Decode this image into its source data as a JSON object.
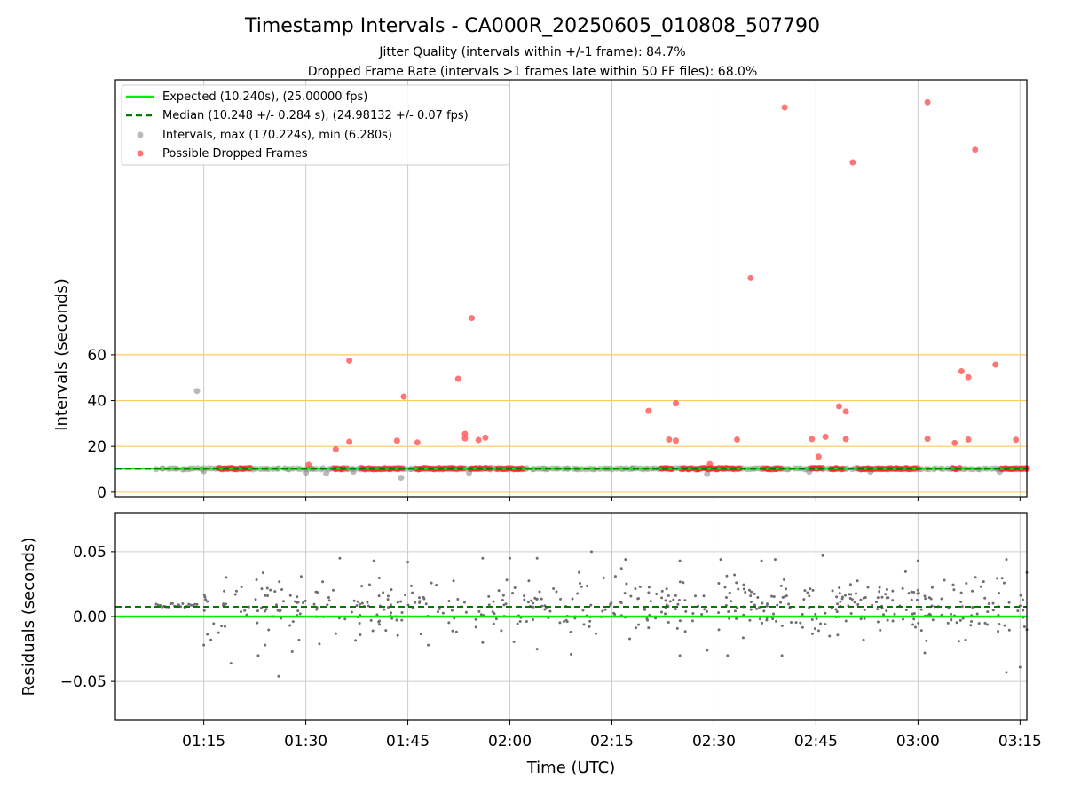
{
  "colors": {
    "expected": "#00ee00",
    "median": "#007a00",
    "interval": "#8c8c8c",
    "dropped": "#ff1a1a",
    "hline": "#ffc966",
    "grid": "#cccccc",
    "residual": "#6e6e6e"
  },
  "figure": {
    "title": "Timestamp Intervals - CA000R_20250605_010808_507790",
    "subtitle1": "Jitter Quality (intervals within +/-1 frame): 84.7%",
    "subtitle2": "Dropped Frame Rate (intervals >1 frames late within 50 FF files): 68.0%"
  },
  "chart_data": [
    {
      "type": "scatter",
      "ylabel": "Intervals (seconds)",
      "xlim": [
        "01:02",
        "03:16"
      ],
      "ylim": [
        -2,
        180
      ],
      "yticks": [
        0,
        20,
        40,
        60
      ],
      "ytick_labels": [
        "0",
        "20",
        "40",
        "60"
      ],
      "hlines": [
        0,
        20,
        40,
        60
      ],
      "vgrid": [
        "01:15",
        "01:30",
        "01:45",
        "02:00",
        "02:15",
        "02:30",
        "02:45",
        "03:00",
        "03:15"
      ],
      "legend_position": "upper-left",
      "legend": [
        "Expected (10.240s), (25.00000 fps)",
        "Median (10.248 +/- 0.284 s), (24.98132 +/- 0.07 fps)",
        "Intervals, max (170.224s), min (6.280s)",
        "Possible Dropped Frames"
      ],
      "expected": 10.24,
      "median": 10.248,
      "series": [
        {
          "role": "intervals",
          "points": [
            [
              "01:14",
              44.2
            ],
            [
              "01:44",
              6.3
            ],
            [
              "01:54",
              8.5
            ],
            [
              "01:33",
              8.3
            ],
            [
              "01:30",
              8.5
            ],
            [
              "02:29",
              8.0
            ],
            [
              "01:37",
              9.0
            ],
            [
              "01:15",
              9.2
            ],
            [
              "02:44",
              9.0
            ],
            [
              "03:12",
              9.0
            ],
            [
              "02:05",
              10.4
            ],
            [
              "02:18",
              10.5
            ],
            [
              "02:39",
              10.5
            ],
            [
              "02:53",
              9.0
            ],
            [
              "02:52",
              10.4
            ]
          ],
          "bands": [
            [
              "01:08",
              "01:18"
            ],
            [
              "01:18",
              "02:20"
            ],
            [
              "02:20",
              "03:16"
            ]
          ]
        },
        {
          "role": "dropped",
          "points": [
            [
              "01:30",
              12.0
            ],
            [
              "01:34",
              18.7
            ],
            [
              "01:36",
              22.0
            ],
            [
              "01:36",
              57.5
            ],
            [
              "01:43",
              22.5
            ],
            [
              "01:44",
              41.7
            ],
            [
              "01:46",
              21.7
            ],
            [
              "01:52",
              49.5
            ],
            [
              "01:53",
              25.5
            ],
            [
              "01:53",
              23.5
            ],
            [
              "01:54",
              76.0
            ],
            [
              "01:55",
              22.8
            ],
            [
              "01:56",
              23.8
            ],
            [
              "02:20",
              35.5
            ],
            [
              "02:23",
              23.0
            ],
            [
              "02:24",
              22.5
            ],
            [
              "02:24",
              38.8
            ],
            [
              "02:29",
              12.3
            ],
            [
              "02:33",
              23.0
            ],
            [
              "02:35",
              93.5
            ],
            [
              "02:40",
              168.0
            ],
            [
              "02:44",
              23.2
            ],
            [
              "02:45",
              15.5
            ],
            [
              "02:46",
              24.2
            ],
            [
              "02:48",
              37.5
            ],
            [
              "02:49",
              35.2
            ],
            [
              "02:49",
              23.2
            ],
            [
              "02:50",
              144.0
            ],
            [
              "03:01",
              23.3
            ],
            [
              "03:01",
              170.2
            ],
            [
              "03:05",
              21.5
            ],
            [
              "03:06",
              52.8
            ],
            [
              "03:07",
              50.2
            ],
            [
              "03:07",
              23.0
            ],
            [
              "03:08",
              149.5
            ],
            [
              "03:11",
              55.7
            ],
            [
              "03:14",
              22.9
            ]
          ],
          "bands": [
            [
              "01:17",
              "01:22"
            ],
            [
              "01:34",
              "01:36"
            ],
            [
              "01:38",
              "01:44"
            ],
            [
              "01:46",
              "01:53"
            ],
            [
              "01:54",
              "01:57"
            ],
            [
              "01:58",
              "02:02"
            ],
            [
              "02:22",
              "02:24"
            ],
            [
              "02:25",
              "02:34"
            ],
            [
              "02:37",
              "02:40"
            ],
            [
              "02:44",
              "02:46"
            ],
            [
              "02:47",
              "02:49"
            ],
            [
              "02:51",
              "03:00"
            ],
            [
              "03:05",
              "03:06"
            ],
            [
              "03:12",
              "03:16"
            ]
          ]
        }
      ]
    },
    {
      "type": "scatter",
      "xlabel": "Time (UTC)",
      "ylabel": "Residuals (seconds)",
      "xlim": [
        "01:02",
        "03:16"
      ],
      "ylim": [
        -0.08,
        0.08
      ],
      "yticks": [
        -0.05,
        0.0,
        0.05
      ],
      "ytick_labels": [
        "−0.05",
        "0.00",
        "0.05"
      ],
      "xticks": [
        "01:15",
        "01:30",
        "01:45",
        "02:00",
        "02:15",
        "02:30",
        "02:45",
        "03:00",
        "03:15"
      ],
      "expected": 0.0,
      "median": 0.0075,
      "series": [
        {
          "role": "residuals",
          "points": [
            [
              "01:26",
              -0.046
            ],
            [
              "01:28",
              -0.027
            ],
            [
              "01:29",
              -0.018
            ],
            [
              "01:32",
              -0.021
            ],
            [
              "01:38",
              -0.014
            ],
            [
              "01:23",
              -0.03
            ],
            [
              "01:24",
              -0.022
            ],
            [
              "01:19",
              -0.036
            ],
            [
              "01:15",
              -0.022
            ],
            [
              "01:48",
              -0.022
            ],
            [
              "01:56",
              -0.02
            ],
            [
              "02:04",
              -0.025
            ],
            [
              "02:09",
              -0.029
            ],
            [
              "02:25",
              -0.03
            ],
            [
              "02:32",
              -0.03
            ],
            [
              "02:40",
              -0.03
            ],
            [
              "02:29",
              -0.026
            ],
            [
              "02:47",
              -0.015
            ],
            [
              "02:52",
              -0.018
            ],
            [
              "03:01",
              -0.028
            ],
            [
              "03:06",
              -0.019
            ],
            [
              "03:07",
              -0.018
            ],
            [
              "03:13",
              -0.043
            ],
            [
              "03:15",
              -0.039
            ],
            [
              "03:16",
              -0.01
            ],
            [
              "01:45",
              0.042
            ],
            [
              "01:56",
              0.045
            ],
            [
              "02:00",
              0.045
            ],
            [
              "02:04",
              0.045
            ],
            [
              "02:12",
              0.05
            ],
            [
              "02:17",
              0.044
            ],
            [
              "02:25",
              0.043
            ],
            [
              "02:31",
              0.044
            ],
            [
              "02:37",
              0.043
            ],
            [
              "02:39",
              0.044
            ],
            [
              "02:46",
              0.047
            ],
            [
              "03:00",
              0.043
            ],
            [
              "03:13",
              0.044
            ],
            [
              "03:16",
              0.034
            ],
            [
              "01:35",
              0.045
            ],
            [
              "01:40",
              0.043
            ]
          ],
          "cloud": [
            "01:15",
            "03:16",
            -0.024,
            0.04
          ],
          "head": [
            "01:08",
            "01:14",
            0.007,
            0.01
          ]
        }
      ]
    }
  ]
}
